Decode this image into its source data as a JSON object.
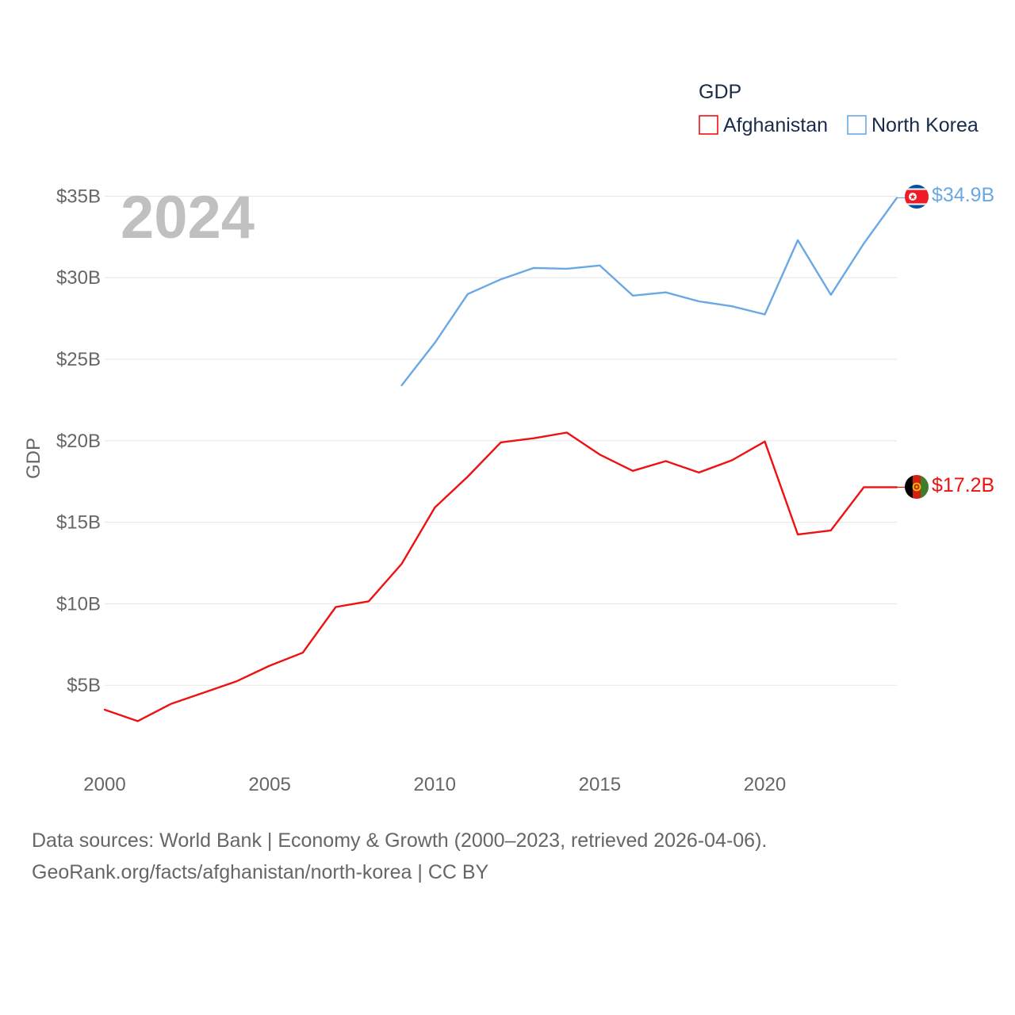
{
  "chart_data": {
    "type": "line",
    "year_label": "2024",
    "ylabel": "GDP",
    "ylim": [
      0,
      35
    ],
    "y_ticks": [
      {
        "value": 5,
        "label": "$5B"
      },
      {
        "value": 10,
        "label": "$10B"
      },
      {
        "value": 15,
        "label": "$15B"
      },
      {
        "value": 20,
        "label": "$20B"
      },
      {
        "value": 25,
        "label": "$25B"
      },
      {
        "value": 30,
        "label": "$30B"
      },
      {
        "value": 35,
        "label": "$35B"
      }
    ],
    "xlim": [
      2000,
      2024
    ],
    "x_ticks": [
      {
        "value": 2000,
        "label": "2000"
      },
      {
        "value": 2005,
        "label": "2005"
      },
      {
        "value": 2010,
        "label": "2010"
      },
      {
        "value": 2015,
        "label": "2015"
      },
      {
        "value": 2020,
        "label": "2020"
      }
    ],
    "legend": {
      "title": "GDP",
      "position": "top-right"
    },
    "series": [
      {
        "name": "Afghanistan",
        "color": "#ee1111",
        "end_label": "$17.2B",
        "flag_icon": "afghanistan-flag-icon",
        "x": [
          2000,
          2001,
          2002,
          2003,
          2004,
          2005,
          2006,
          2007,
          2008,
          2009,
          2010,
          2011,
          2012,
          2013,
          2014,
          2015,
          2016,
          2017,
          2018,
          2019,
          2020,
          2021,
          2022,
          2023,
          2024
        ],
        "values": [
          3.5,
          2.8,
          3.85,
          4.55,
          5.25,
          6.2,
          7.0,
          9.8,
          10.15,
          12.45,
          15.9,
          17.8,
          19.9,
          20.15,
          20.5,
          19.15,
          18.15,
          18.75,
          18.05,
          18.8,
          19.95,
          14.25,
          14.5,
          17.15,
          17.15
        ]
      },
      {
        "name": "North Korea",
        "color": "#6aa8e4",
        "end_label": "$34.9B",
        "flag_icon": "north-korea-flag-icon",
        "x": [
          2009,
          2010,
          2011,
          2012,
          2013,
          2014,
          2015,
          2016,
          2017,
          2018,
          2019,
          2020,
          2021,
          2022,
          2023,
          2024
        ],
        "values": [
          23.4,
          26.0,
          29.0,
          29.9,
          30.6,
          30.55,
          30.75,
          28.9,
          29.1,
          28.55,
          28.25,
          27.75,
          32.3,
          28.95,
          32.1,
          34.9
        ]
      }
    ]
  },
  "footer": {
    "line1": "Data sources: World Bank | Economy & Growth (2000–2023, retrieved 2026-04-06).",
    "line2": "GeoRank.org/facts/afghanistan/north-korea | CC BY"
  }
}
